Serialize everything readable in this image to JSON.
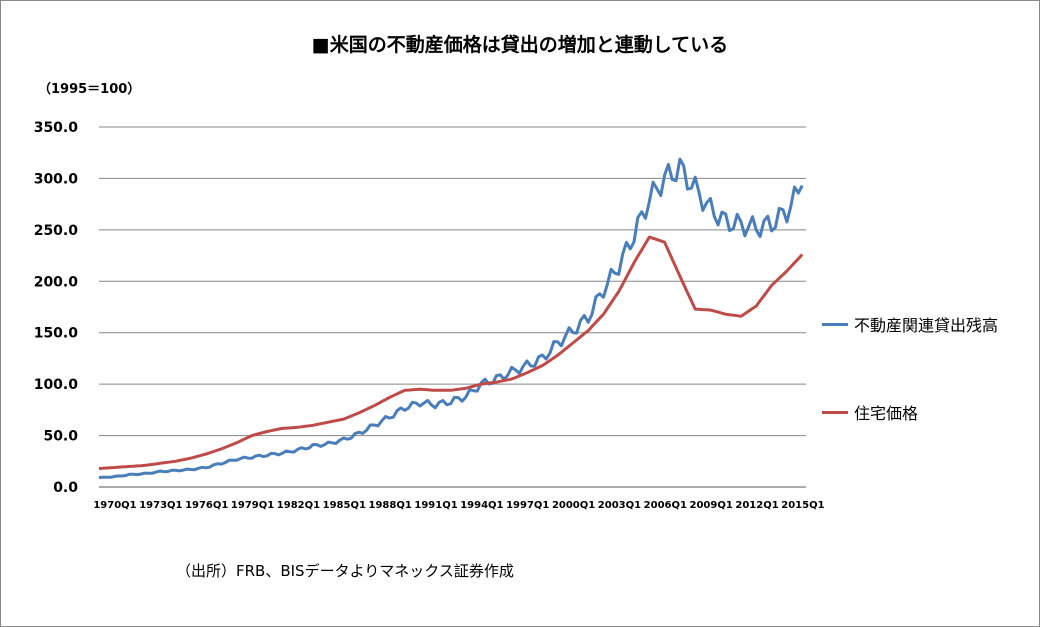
{
  "title": "■米国の不動産価格は貸出の増加と連動している",
  "unit_label": "（1995＝100）",
  "source": "（出所）FRB、BISデータよりマネックス証券作成",
  "colors": {
    "loans": "#4a7ebb",
    "prices": "#be4b48",
    "grid": "#868686"
  },
  "chart_data": {
    "type": "line",
    "title": "■米国の不動産価格は貸出の増加と連動している",
    "ylabel": "（1995＝100）",
    "ylim": [
      0,
      350
    ],
    "yticks": [
      "0.0",
      "50.0",
      "100.0",
      "150.0",
      "200.0",
      "250.0",
      "300.0",
      "350.0"
    ],
    "xticks": [
      "1970Q1",
      "1973Q1",
      "1976Q1",
      "1979Q1",
      "1982Q1",
      "1985Q1",
      "1988Q1",
      "1991Q1",
      "1994Q1",
      "1997Q1",
      "2000Q1",
      "2003Q1",
      "2006Q1",
      "2009Q1",
      "2012Q1",
      "2015Q1"
    ],
    "grid": true,
    "legend_position": "right",
    "x": [
      1970,
      1971,
      1972,
      1973,
      1974,
      1975,
      1976,
      1977,
      1978,
      1979,
      1980,
      1981,
      1982,
      1983,
      1984,
      1985,
      1986,
      1987,
      1988,
      1989,
      1990,
      1991,
      1992,
      1993,
      1994,
      1995,
      1996,
      1997,
      1998,
      1999,
      2000,
      2001,
      2002,
      2003,
      2004,
      2005,
      2006,
      2007,
      2008,
      2009,
      2010,
      2011,
      2012,
      2013,
      2014,
      2015,
      2016
    ],
    "series": [
      {
        "name": "不動産関連貸出残高",
        "values": [
          9,
          10,
          12,
          13,
          15,
          16,
          17,
          19,
          23,
          27,
          29,
          31,
          33,
          36,
          40,
          42,
          46,
          52,
          60,
          68,
          77,
          82,
          80,
          83,
          88,
          100,
          105,
          112,
          118,
          125,
          140,
          152,
          165,
          192,
          215,
          245,
          280,
          300,
          310,
          290,
          270,
          258,
          255,
          252,
          256,
          268,
          293
        ]
      },
      {
        "name": "住宅価格",
        "values": [
          18,
          19,
          20,
          21,
          23,
          25,
          28,
          32,
          37,
          43,
          50,
          54,
          57,
          58,
          60,
          63,
          66,
          72,
          79,
          87,
          94,
          95,
          94,
          94,
          96,
          100,
          102,
          105,
          111,
          118,
          128,
          140,
          152,
          168,
          190,
          218,
          243,
          238,
          205,
          173,
          172,
          168,
          166,
          176,
          196,
          210,
          226
        ]
      }
    ]
  },
  "legend": [
    {
      "label": "不動産関連貸出残高"
    },
    {
      "label": "住宅価格"
    }
  ]
}
